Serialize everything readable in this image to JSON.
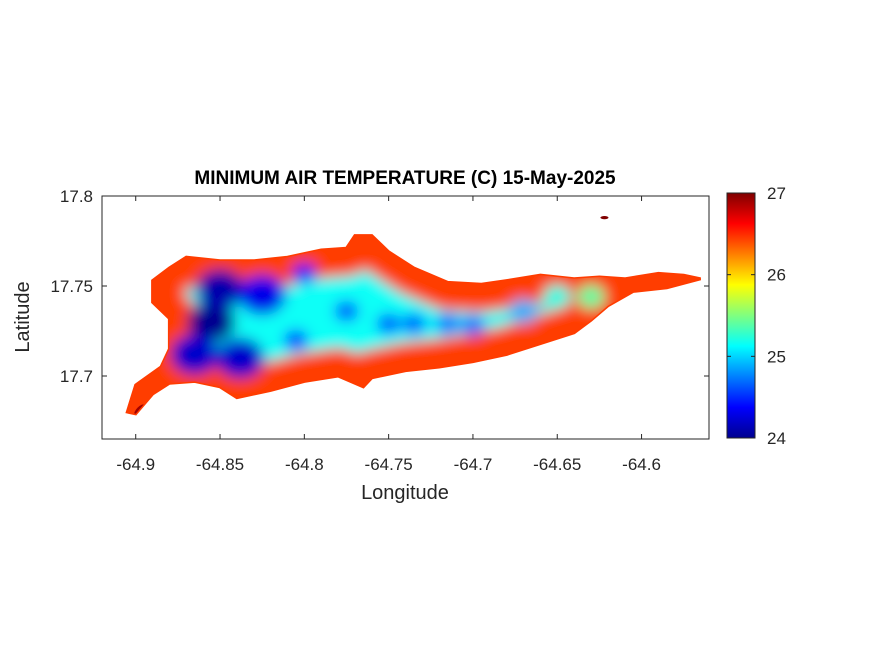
{
  "chart_data": {
    "type": "heatmap",
    "title": "MINIMUM AIR TEMPERATURE (C) 15-May-2025",
    "xlabel": "Longitude",
    "ylabel": "Latitude",
    "xlim": [
      -64.92,
      -64.56
    ],
    "ylim": [
      17.665,
      17.8
    ],
    "xticks": [
      -64.9,
      -64.85,
      -64.8,
      -64.75,
      -64.7,
      -64.65,
      -64.6
    ],
    "xtick_labels": [
      "-64.9",
      "-64.85",
      "-64.8",
      "-64.75",
      "-64.7",
      "-64.65",
      "-64.6"
    ],
    "yticks": [
      17.7,
      17.75,
      17.8
    ],
    "ytick_labels": [
      "17.7",
      "17.75",
      "17.8"
    ],
    "colorbar": {
      "colormap": "jet",
      "range": [
        24,
        27
      ],
      "ticks": [
        24,
        25,
        26,
        27
      ],
      "tick_labels": [
        "24",
        "25",
        "26",
        "27"
      ]
    },
    "grid": false,
    "boundary": [
      [
        -64.9,
        17.679
      ],
      [
        -64.89,
        17.69
      ],
      [
        -64.88,
        17.696
      ],
      [
        -64.865,
        17.697
      ],
      [
        -64.85,
        17.694
      ],
      [
        -64.84,
        17.688
      ],
      [
        -64.82,
        17.692
      ],
      [
        -64.8,
        17.697
      ],
      [
        -64.78,
        17.7
      ],
      [
        -64.765,
        17.694
      ],
      [
        -64.76,
        17.699
      ],
      [
        -64.74,
        17.703
      ],
      [
        -64.72,
        17.705
      ],
      [
        -64.7,
        17.708
      ],
      [
        -64.68,
        17.712
      ],
      [
        -64.66,
        17.718
      ],
      [
        -64.64,
        17.724
      ],
      [
        -64.63,
        17.731
      ],
      [
        -64.62,
        17.739
      ],
      [
        -64.605,
        17.747
      ],
      [
        -64.585,
        17.749
      ],
      [
        -64.565,
        17.754
      ],
      [
        -64.575,
        17.756
      ],
      [
        -64.59,
        17.757
      ],
      [
        -64.61,
        17.754
      ],
      [
        -64.625,
        17.755
      ],
      [
        -64.64,
        17.754
      ],
      [
        -64.66,
        17.756
      ],
      [
        -64.68,
        17.753
      ],
      [
        -64.695,
        17.751
      ],
      [
        -64.715,
        17.752
      ],
      [
        -64.735,
        17.76
      ],
      [
        -64.75,
        17.769
      ],
      [
        -64.76,
        17.778
      ],
      [
        -64.77,
        17.778
      ],
      [
        -64.775,
        17.771
      ],
      [
        -64.79,
        17.77
      ],
      [
        -64.81,
        17.766
      ],
      [
        -64.83,
        17.764
      ],
      [
        -64.85,
        17.764
      ],
      [
        -64.87,
        17.766
      ],
      [
        -64.88,
        17.76
      ],
      [
        -64.89,
        17.753
      ],
      [
        -64.89,
        17.741
      ],
      [
        -64.88,
        17.732
      ],
      [
        -64.88,
        17.715
      ],
      [
        -64.885,
        17.705
      ],
      [
        -64.9,
        17.695
      ],
      [
        -64.905,
        17.68
      ]
    ],
    "islets": [
      {
        "x": -64.622,
        "y": 17.788,
        "value": 27
      }
    ],
    "cold_spots": [
      {
        "x": -64.855,
        "y": 17.73,
        "value": 24.0
      },
      {
        "x": -64.85,
        "y": 17.748,
        "value": 24.1
      },
      {
        "x": -64.865,
        "y": 17.712,
        "value": 24.2
      },
      {
        "x": -64.838,
        "y": 17.71,
        "value": 24.2
      },
      {
        "x": -64.825,
        "y": 17.745,
        "value": 24.3
      },
      {
        "x": -64.8,
        "y": 17.757,
        "value": 24.4
      },
      {
        "x": -64.805,
        "y": 17.72,
        "value": 24.5
      },
      {
        "x": -64.775,
        "y": 17.736,
        "value": 24.6
      },
      {
        "x": -64.75,
        "y": 17.729,
        "value": 24.6
      },
      {
        "x": -64.735,
        "y": 17.729,
        "value": 24.6
      },
      {
        "x": -64.715,
        "y": 17.729,
        "value": 24.7
      },
      {
        "x": -64.7,
        "y": 17.728,
        "value": 24.7
      },
      {
        "x": -64.67,
        "y": 17.736,
        "value": 24.9
      },
      {
        "x": -64.65,
        "y": 17.744,
        "value": 25.2
      },
      {
        "x": -64.63,
        "y": 17.744,
        "value": 25.4
      }
    ]
  }
}
